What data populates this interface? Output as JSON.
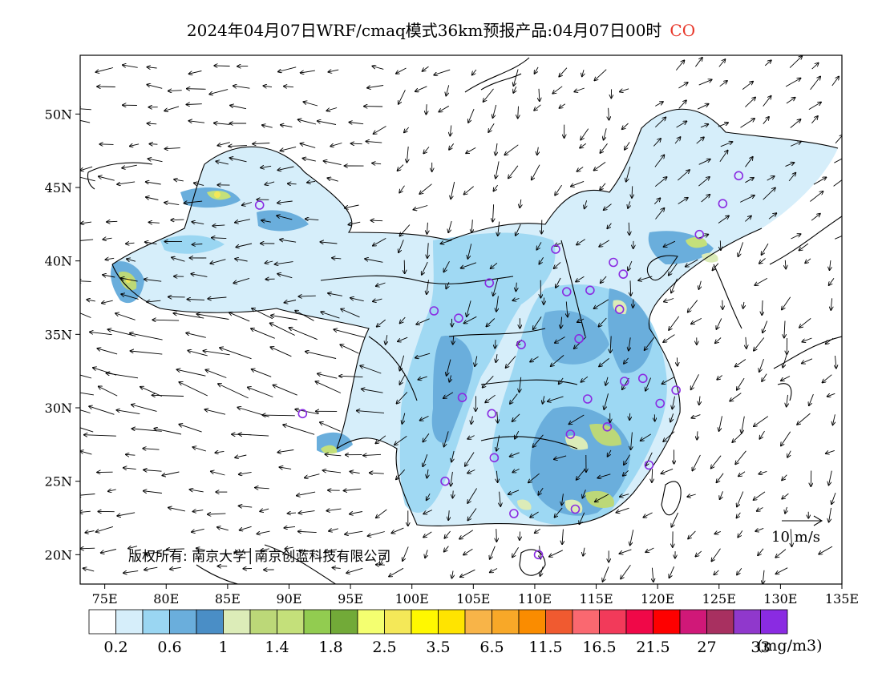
{
  "title": {
    "text": "2024年04月07日WRF/cmaq模式36km预报产品:04月07日00时",
    "species": "CO",
    "species_color": "#e8372a"
  },
  "map": {
    "lon_range": [
      73,
      135
    ],
    "lat_range": [
      18,
      54
    ],
    "lat_ticks": [
      "50N",
      "45N",
      "40N",
      "35N",
      "30N",
      "25N",
      "20N"
    ],
    "lon_ticks": [
      "75E",
      "80E",
      "85E",
      "90E",
      "95E",
      "100E",
      "105E",
      "110E",
      "115E",
      "120E",
      "125E",
      "130E",
      "135E"
    ],
    "copyright": "版权所有: 南京大学│南京创蓝科技有限公司",
    "wind_reference_label": "10 m/s",
    "station_marker_color": "#8a2be2",
    "stations": [
      [
        87.6,
        43.8
      ],
      [
        101.8,
        36.6
      ],
      [
        103.8,
        36.1
      ],
      [
        106.3,
        38.5
      ],
      [
        111.7,
        40.8
      ],
      [
        112.6,
        37.9
      ],
      [
        114.5,
        38.0
      ],
      [
        116.4,
        39.9
      ],
      [
        117.2,
        39.1
      ],
      [
        116.9,
        36.7
      ],
      [
        113.6,
        34.7
      ],
      [
        108.9,
        34.3
      ],
      [
        117.3,
        31.8
      ],
      [
        118.8,
        32.0
      ],
      [
        121.5,
        31.2
      ],
      [
        120.2,
        30.3
      ],
      [
        114.3,
        30.6
      ],
      [
        112.9,
        28.2
      ],
      [
        115.9,
        28.7
      ],
      [
        119.3,
        26.1
      ],
      [
        104.1,
        30.7
      ],
      [
        106.5,
        29.6
      ],
      [
        106.7,
        26.6
      ],
      [
        102.7,
        25.0
      ],
      [
        108.3,
        22.8
      ],
      [
        113.3,
        23.1
      ],
      [
        110.3,
        20.0
      ],
      [
        91.1,
        29.6
      ],
      [
        123.4,
        41.8
      ],
      [
        125.3,
        43.9
      ],
      [
        126.6,
        45.8
      ]
    ]
  },
  "legend": {
    "colors": [
      "#ffffff",
      "#d6eefa",
      "#9ad6f2",
      "#6aaedc",
      "#4a8ec6",
      "#dcecb8",
      "#bcd878",
      "#c4e07a",
      "#92cc50",
      "#72aa38",
      "#f4ff70",
      "#f4e858",
      "#fff800",
      "#ffe400",
      "#f8b448",
      "#f8a828",
      "#fa8c00",
      "#f05a30",
      "#fa6870",
      "#f23a5a",
      "#f00848",
      "#fe0000",
      "#d01878",
      "#a83060",
      "#9038cc",
      "#8a2be2"
    ],
    "labels": [
      "0.2",
      "0.6",
      "1",
      "1.4",
      "1.8",
      "2.5",
      "3.5",
      "6.5",
      "11.5",
      "16.5",
      "21.5",
      "27",
      "33"
    ],
    "unit": "(mg/m3)"
  }
}
